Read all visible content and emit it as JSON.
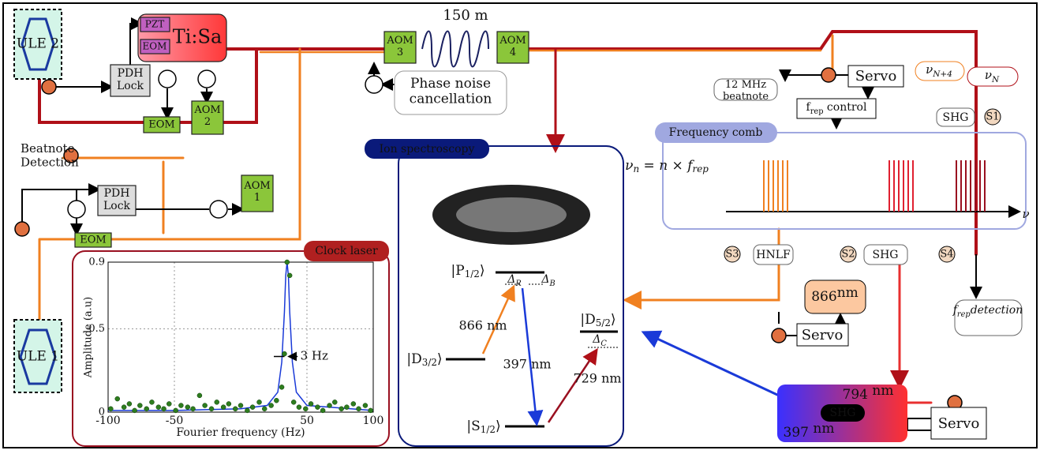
{
  "labels": {
    "ule2": "ULE 2",
    "ule1": "ULE 1",
    "tisa": "Ti:Sa",
    "pzt": "PZT",
    "eom_tisa": "EOM",
    "pdh_lock_top": [
      "PDH",
      "Lock"
    ],
    "pdh_lock_bottom": [
      "PDH",
      "Lock"
    ],
    "aom2": [
      "AOM",
      "2"
    ],
    "aom1": [
      "AOM",
      "1"
    ],
    "aom3": [
      "AOM",
      "3"
    ],
    "aom4": [
      "AOM",
      "4"
    ],
    "eom_top": "EOM",
    "eom_bottom": "EOM",
    "fiber_length": "150 m",
    "phase_noise": [
      "Phase noise",
      "cancellation"
    ],
    "beatnote_detection": [
      "Beatnote",
      "Detection"
    ],
    "beatnote_12mhz": [
      "12 MHz",
      "beatnote"
    ],
    "servo_top": "Servo",
    "servo_866": "Servo",
    "servo_shg": "Servo",
    "frep_control": [
      "f",
      "rep",
      "  control"
    ],
    "nu_n4": [
      "ν",
      "N+4"
    ],
    "nu_n": [
      "ν",
      "N"
    ],
    "shg_s1": "SHG",
    "s1": "S1",
    "frequency_comb": "Frequency comb",
    "comb_formula": [
      "ν",
      "n",
      " = n × f",
      "rep"
    ],
    "comb_axis": "ν",
    "s3": "S3",
    "hnlf": "HNLF",
    "s2": "S2",
    "shg_s2": "SHG",
    "s4": "S4",
    "laser_866": [
      "866",
      "nm"
    ],
    "frep_detection": [
      "f",
      "rep",
      "detection"
    ],
    "shg_box": {
      "top": [
        "794 ",
        "nm"
      ],
      "center": "SHG",
      "bottom": [
        "397 ",
        "nm"
      ]
    }
  },
  "ion_spectroscopy": {
    "title": "Ion spectroscopy",
    "levels": {
      "p12": [
        "|P",
        "1/2",
        "⟩"
      ],
      "d32": [
        "|D",
        "3/2",
        "⟩"
      ],
      "d52": [
        "|D",
        "5/2",
        "⟩"
      ],
      "s12": [
        "|S",
        "1/2",
        "⟩"
      ]
    },
    "detunings": {
      "r": [
        "Δ",
        "R"
      ],
      "b": [
        "Δ",
        "B"
      ],
      "c": [
        "Δ",
        "C"
      ]
    },
    "transitions": {
      "t866": "866 nm",
      "t397": "397 nm",
      "t729": "729 nm"
    }
  },
  "clock_chart": {
    "type": "scatter",
    "title": "Clock laser",
    "xlabel": "Fourier frequency (Hz)",
    "ylabel": "Amplitude (a.u)",
    "annotation": "3 Hz",
    "xlim": [
      -100,
      100
    ],
    "ylim": [
      0,
      0.9
    ],
    "xticks": [
      -100,
      -50,
      50,
      100
    ],
    "yticks": [
      0,
      0.5,
      0.9
    ],
    "grid": true,
    "points": {
      "color": "#2e7d1e",
      "x": [
        -98,
        -93,
        -88,
        -84,
        -80,
        -76,
        -71,
        -67,
        -62,
        -58,
        -54,
        -49,
        -45,
        -40,
        -36,
        -31,
        -27,
        -22,
        -18,
        -13,
        -9,
        -4,
        0,
        5,
        9,
        14,
        18,
        23,
        27,
        31,
        33,
        35,
        37,
        40,
        44,
        49,
        53,
        58,
        62,
        67,
        71,
        76,
        80,
        85,
        89,
        94,
        98
      ],
      "values": [
        0.02,
        0.08,
        0.03,
        0.05,
        0.01,
        0.04,
        0.02,
        0.06,
        0.03,
        0.02,
        0.05,
        0.01,
        0.04,
        0.03,
        0.02,
        0.1,
        0.04,
        0.02,
        0.06,
        0.03,
        0.05,
        0.02,
        0.04,
        0.01,
        0.03,
        0.06,
        0.02,
        0.04,
        0.07,
        0.15,
        0.35,
        0.9,
        0.82,
        0.06,
        0.03,
        0.02,
        0.05,
        0.03,
        0.01,
        0.04,
        0.06,
        0.02,
        0.03,
        0.05,
        0.02,
        0.04,
        0.01
      ]
    },
    "fit": {
      "color": "#1a3ad8",
      "x": [
        -100,
        -50,
        0,
        20,
        28,
        31,
        33,
        34,
        35,
        36,
        37,
        39,
        42,
        50,
        100
      ],
      "values": [
        0.01,
        0.01,
        0.02,
        0.04,
        0.12,
        0.3,
        0.6,
        0.82,
        0.9,
        0.82,
        0.6,
        0.3,
        0.12,
        0.04,
        0.01
      ]
    }
  }
}
